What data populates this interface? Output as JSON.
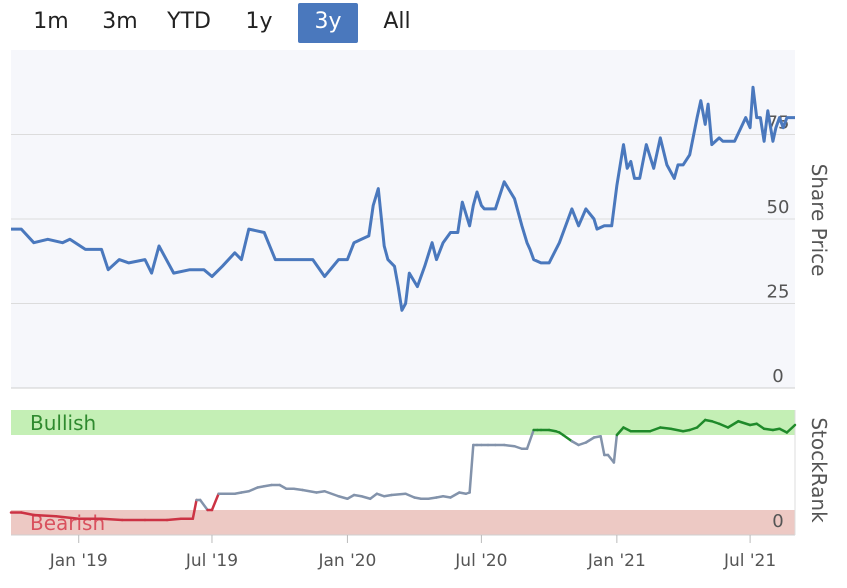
{
  "range_selector": {
    "buttons": [
      "1m",
      "3m",
      "YTD",
      "1y",
      "3y",
      "All"
    ],
    "selected": "3y",
    "active_color": "#4a78bd"
  },
  "chart_data": [
    {
      "type": "line",
      "ylabel": "Share Price",
      "ylim": [
        0,
        100
      ],
      "yticks": [
        0,
        25,
        50,
        75
      ],
      "grid": true,
      "line_color": "#4a78bd",
      "x_ticks": [
        "Jan '19",
        "Jul '19",
        "Jan '20",
        "Jul '20",
        "Jan '21",
        "Jul '21"
      ],
      "x_range": [
        "2018-10-01",
        "2021-08-31"
      ],
      "series": [
        {
          "x": [
            "2018-10-01",
            "2018-10-15",
            "2018-11-01",
            "2018-11-20",
            "2018-12-10",
            "2018-12-20",
            "2019-01-10",
            "2019-02-01",
            "2019-02-10",
            "2019-02-25",
            "2019-03-10",
            "2019-04-01",
            "2019-04-10",
            "2019-04-20",
            "2019-05-10",
            "2019-06-01",
            "2019-06-20",
            "2019-07-01",
            "2019-07-15",
            "2019-08-01",
            "2019-08-10",
            "2019-08-20",
            "2019-09-10",
            "2019-09-25",
            "2019-10-01",
            "2019-10-10",
            "2019-10-25",
            "2019-11-15",
            "2019-12-01",
            "2019-12-20",
            "2020-01-01",
            "2020-01-10",
            "2020-01-20",
            "2020-01-30",
            "2020-02-05",
            "2020-02-12",
            "2020-02-20",
            "2020-02-25",
            "2020-03-05",
            "2020-03-10",
            "2020-03-15",
            "2020-03-20",
            "2020-03-25",
            "2020-04-05",
            "2020-04-15",
            "2020-04-25",
            "2020-05-01",
            "2020-05-10",
            "2020-05-20",
            "2020-05-30",
            "2020-06-05",
            "2020-06-15",
            "2020-06-20",
            "2020-06-25",
            "2020-07-01",
            "2020-07-05",
            "2020-07-10",
            "2020-07-20",
            "2020-08-01",
            "2020-08-15",
            "2020-08-25",
            "2020-09-01",
            "2020-09-05",
            "2020-09-10",
            "2020-09-20",
            "2020-10-01",
            "2020-10-15",
            "2020-11-01",
            "2020-11-10",
            "2020-11-20",
            "2020-12-01",
            "2020-12-05",
            "2020-12-15",
            "2020-12-25",
            "2021-01-01",
            "2021-01-10",
            "2021-01-15",
            "2021-01-20",
            "2021-01-25",
            "2021-02-01",
            "2021-02-10",
            "2021-02-20",
            "2021-03-01",
            "2021-03-10",
            "2021-03-20",
            "2021-03-25",
            "2021-04-01",
            "2021-04-10",
            "2021-04-20",
            "2021-04-25",
            "2021-05-01",
            "2021-05-05",
            "2021-05-10",
            "2021-05-20",
            "2021-05-25",
            "2021-06-01",
            "2021-06-10",
            "2021-06-25",
            "2021-07-01",
            "2021-07-05",
            "2021-07-10",
            "2021-07-15",
            "2021-07-20",
            "2021-07-25",
            "2021-08-01",
            "2021-08-05",
            "2021-08-10",
            "2021-08-15",
            "2021-08-20",
            "2021-08-31"
          ],
          "y": [
            47,
            47,
            43,
            44,
            43,
            44,
            41,
            41,
            35,
            38,
            37,
            38,
            34,
            42,
            34,
            35,
            35,
            33,
            36,
            40,
            38,
            47,
            46,
            38,
            38,
            38,
            38,
            38,
            33,
            38,
            38,
            43,
            44,
            45,
            54,
            59,
            42,
            38,
            36,
            30,
            23,
            25,
            34,
            30,
            36,
            43,
            38,
            43,
            46,
            46,
            55,
            48,
            54,
            58,
            54,
            53,
            53,
            53,
            61,
            56,
            48,
            43,
            41,
            38,
            37,
            37,
            43,
            53,
            48,
            53,
            50,
            47,
            48,
            48,
            60,
            72,
            65,
            67,
            62,
            62,
            72,
            65,
            74,
            66,
            62,
            66,
            66,
            69,
            80,
            85,
            78,
            84,
            72,
            74,
            73,
            73,
            73,
            80,
            77,
            89,
            80,
            80,
            73,
            82,
            73,
            77,
            80,
            77,
            80,
            80
          ]
        }
      ]
    },
    {
      "type": "line",
      "ylabel": "StockRank",
      "ylim": [
        0,
        100
      ],
      "yticks": [
        0
      ],
      "bands": [
        {
          "label": "Bullish",
          "from": 80,
          "to": 100,
          "fill": "#c4efb5",
          "text_color": "#2f8a2f"
        },
        {
          "label": "Bearish",
          "from": 0,
          "to": 20,
          "fill": "#edc9c4",
          "text_color": "#d9515e"
        }
      ],
      "colors": {
        "bullish": "#1f8a2a",
        "neutral": "#8393ab",
        "bearish": "#cc3344"
      },
      "series": [
        {
          "x": [
            "2018-10-01",
            "2018-10-15",
            "2018-11-01",
            "2018-12-01",
            "2019-01-01",
            "2019-02-01",
            "2019-03-01",
            "2019-04-01",
            "2019-05-01",
            "2019-05-20",
            "2019-05-25",
            "2019-06-01",
            "2019-06-05",
            "2019-06-10",
            "2019-06-15",
            "2019-06-25",
            "2019-07-01",
            "2019-07-10",
            "2019-07-20",
            "2019-08-01",
            "2019-08-10",
            "2019-08-20",
            "2019-09-01",
            "2019-09-10",
            "2019-09-20",
            "2019-10-01",
            "2019-10-10",
            "2019-10-20",
            "2019-11-01",
            "2019-11-20",
            "2019-12-01",
            "2019-12-20",
            "2020-01-01",
            "2020-01-10",
            "2020-01-20",
            "2020-02-01",
            "2020-02-10",
            "2020-02-20",
            "2020-03-01",
            "2020-03-20",
            "2020-04-01",
            "2020-04-10",
            "2020-04-20",
            "2020-05-01",
            "2020-05-10",
            "2020-05-20",
            "2020-06-01",
            "2020-06-10",
            "2020-06-15",
            "2020-06-20",
            "2020-06-25",
            "2020-07-01",
            "2020-07-10",
            "2020-07-20",
            "2020-08-01",
            "2020-08-15",
            "2020-08-25",
            "2020-09-01",
            "2020-09-10",
            "2020-09-15",
            "2020-09-20",
            "2020-10-01",
            "2020-10-10",
            "2020-10-15",
            "2020-10-20",
            "2020-11-01",
            "2020-11-10",
            "2020-11-20",
            "2020-12-01",
            "2020-12-10",
            "2020-12-15",
            "2020-12-20",
            "2020-12-28",
            "2021-01-01",
            "2021-01-10",
            "2021-01-20",
            "2021-02-01",
            "2021-02-15",
            "2021-03-01",
            "2021-03-15",
            "2021-04-01",
            "2021-04-10",
            "2021-04-20",
            "2021-05-01",
            "2021-05-10",
            "2021-05-20",
            "2021-06-01",
            "2021-06-15",
            "2021-07-01",
            "2021-07-10",
            "2021-07-20",
            "2021-08-01",
            "2021-08-10",
            "2021-08-20",
            "2021-08-31"
          ],
          "y": [
            18,
            18,
            16,
            15,
            13,
            13,
            12,
            12,
            12,
            13,
            13,
            13,
            13,
            28,
            28,
            20,
            20,
            33,
            33,
            33,
            34,
            35,
            38,
            39,
            40,
            40,
            37,
            37,
            36,
            34,
            35,
            31,
            29,
            32,
            31,
            29,
            33,
            31,
            32,
            33,
            30,
            29,
            29,
            30,
            31,
            30,
            34,
            33,
            34,
            72,
            72,
            72,
            72,
            72,
            72,
            71,
            69,
            69,
            84,
            84,
            84,
            84,
            83,
            82,
            80,
            75,
            72,
            74,
            78,
            79,
            64,
            64,
            58,
            80,
            86,
            83,
            83,
            83,
            86,
            85,
            83,
            84,
            86,
            92,
            91,
            89,
            86,
            91,
            88,
            89,
            85,
            84,
            85,
            82,
            88
          ]
        }
      ]
    }
  ]
}
